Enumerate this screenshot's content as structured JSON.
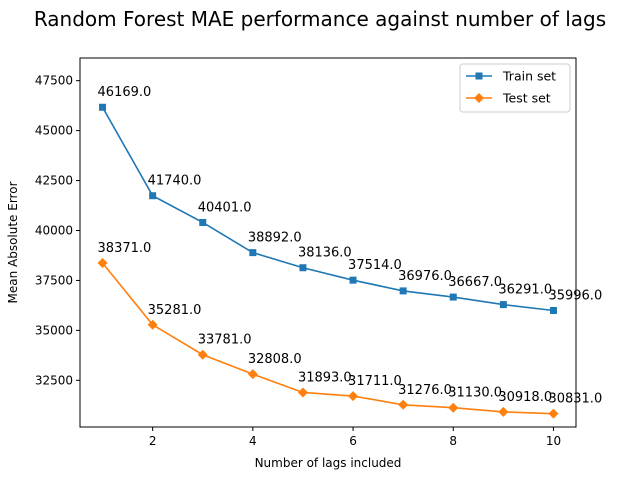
{
  "chart_data": {
    "type": "line",
    "title": "Random Forest MAE performance against number of lags",
    "xlabel": "Number of lags included",
    "ylabel": "Mean Absolute Error",
    "x": [
      1,
      2,
      3,
      4,
      5,
      6,
      7,
      8,
      9,
      10
    ],
    "xlim": [
      0.55,
      10.45
    ],
    "ylim": [
      30164,
      48634
    ],
    "x_ticks": [
      2,
      4,
      6,
      8,
      10
    ],
    "y_ticks": [
      32500,
      35000,
      37500,
      40000,
      42500,
      45000,
      47500
    ],
    "grid": false,
    "legend_position": "top-right",
    "series": [
      {
        "name": "Train set",
        "color": "#1f77b4",
        "marker": "square",
        "values": [
          46169,
          41740,
          40401,
          38892,
          38136,
          37514,
          36976,
          36667,
          36291,
          35996
        ],
        "labels": [
          "46169.0",
          "41740.0",
          "40401.0",
          "38892.0",
          "38136.0",
          "37514.0",
          "36976.0",
          "36667.0",
          "36291.0",
          "35996.0"
        ]
      },
      {
        "name": "Test set",
        "color": "#ff7f0e",
        "marker": "diamond",
        "values": [
          38371,
          35281,
          33781,
          32808,
          31893,
          31711,
          31276,
          31130,
          30918,
          30831
        ],
        "labels": [
          "38371.0",
          "35281.0",
          "33781.0",
          "32808.0",
          "31893.0",
          "31711.0",
          "31276.0",
          "31130.0",
          "30918.0",
          "30831.0"
        ]
      }
    ]
  }
}
